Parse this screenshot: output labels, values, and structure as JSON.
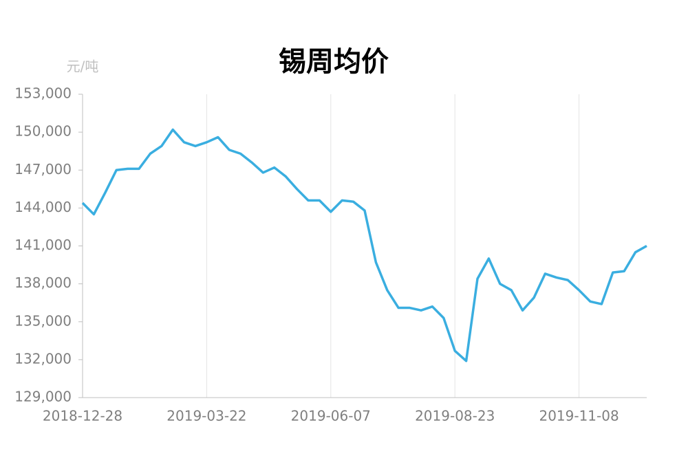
{
  "chart_data": {
    "type": "line",
    "title": "锡周均价",
    "y_unit": "元/吨",
    "categories": [
      "2018-12-28",
      null,
      null,
      null,
      null,
      null,
      null,
      null,
      null,
      null,
      null,
      "2019-03-22",
      null,
      null,
      null,
      null,
      null,
      null,
      null,
      null,
      null,
      null,
      "2019-06-07",
      null,
      null,
      null,
      null,
      null,
      null,
      null,
      null,
      null,
      null,
      "2019-08-23",
      null,
      null,
      null,
      null,
      null,
      null,
      null,
      null,
      null,
      null,
      "2019-11-08",
      null,
      null,
      null,
      null,
      null,
      null
    ],
    "series": [
      {
        "name": "锡周均价",
        "color": "#3aaee0",
        "values": [
          144400,
          143500,
          145200,
          147000,
          147100,
          147100,
          148300,
          148900,
          150200,
          149200,
          148900,
          149200,
          149600,
          148600,
          148300,
          147600,
          146800,
          147200,
          146500,
          145500,
          144600,
          144600,
          143700,
          144600,
          144500,
          143800,
          139700,
          137500,
          136100,
          136100,
          135900,
          136200,
          135300,
          132700,
          131900,
          138400,
          140000,
          138000,
          137500,
          135900,
          136900,
          138800,
          138500,
          138300,
          137500,
          136600,
          136400,
          138900,
          139000,
          140500,
          141000
        ]
      }
    ],
    "ylim": [
      129000,
      153000
    ],
    "yticks": [
      {
        "value": 129000,
        "label": "129,000"
      },
      {
        "value": 132000,
        "label": "132,000"
      },
      {
        "value": 135000,
        "label": "135,000"
      },
      {
        "value": 138000,
        "label": "138,000"
      },
      {
        "value": 141000,
        "label": "141,000"
      },
      {
        "value": 144000,
        "label": "144,000"
      },
      {
        "value": 147000,
        "label": "147,000"
      },
      {
        "value": 150000,
        "label": "150,000"
      },
      {
        "value": 153000,
        "label": "153,000"
      }
    ],
    "grid": true
  }
}
